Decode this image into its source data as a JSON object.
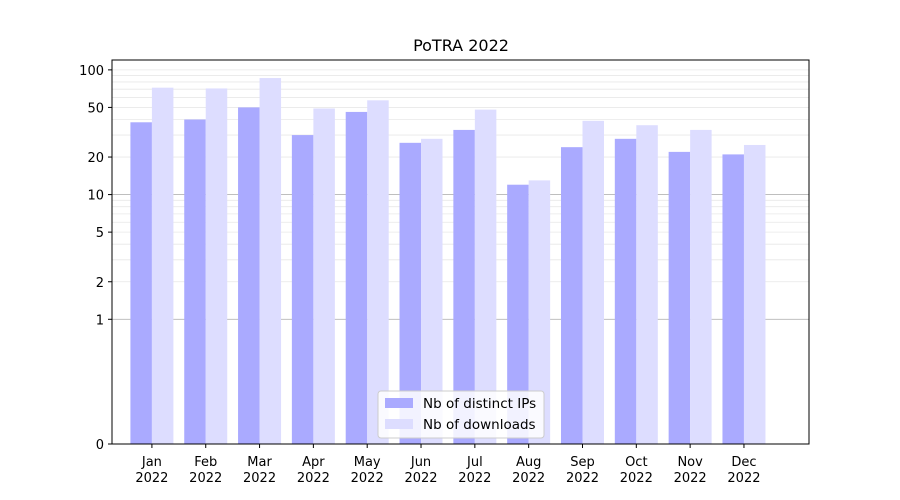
{
  "chart_data": {
    "type": "bar",
    "title": "PoTRA 2022",
    "xlabel": "",
    "ylabel": "",
    "y_scale": "symlog",
    "ylim": [
      0,
      120
    ],
    "y_ticks": [
      0,
      1,
      2,
      5,
      10,
      20,
      50,
      100
    ],
    "y_tick_labels": [
      "0",
      "1",
      "2",
      "5",
      "10",
      "20",
      "50",
      "100"
    ],
    "categories": [
      "Jan",
      "Feb",
      "Mar",
      "Apr",
      "May",
      "Jun",
      "Jul",
      "Aug",
      "Sep",
      "Oct",
      "Nov",
      "Dec"
    ],
    "category_year": "2022",
    "series": [
      {
        "name": "Nb of distinct IPs",
        "color": "#aaaaff",
        "values": [
          38,
          40,
          50,
          30,
          46,
          26,
          33,
          12,
          24,
          28,
          22,
          21
        ]
      },
      {
        "name": "Nb of downloads",
        "color": "#ddddff",
        "values": [
          72,
          71,
          86,
          49,
          57,
          28,
          48,
          13,
          39,
          36,
          33,
          25
        ]
      }
    ],
    "grid": true,
    "legend_position": "lower center"
  }
}
